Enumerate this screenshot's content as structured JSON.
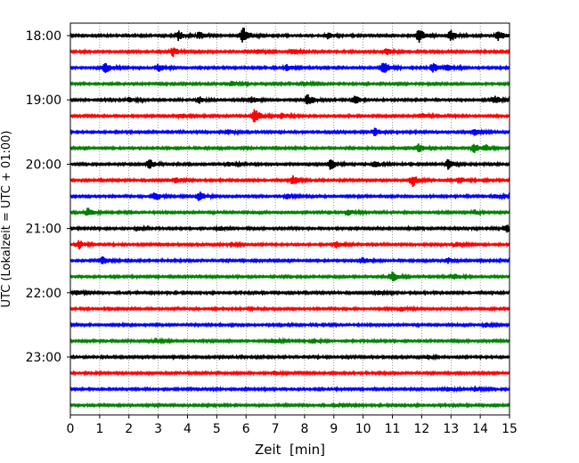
{
  "chart_data": {
    "type": "line",
    "title": "",
    "xlabel": "Zeit  [min]",
    "ylabel": "UTC (Lokalzeit = UTC + 01:00)",
    "xlim": [
      0,
      15
    ],
    "x_ticks": [
      0,
      1,
      2,
      3,
      4,
      5,
      6,
      7,
      8,
      9,
      10,
      11,
      12,
      13,
      14,
      15
    ],
    "y_tick_labels": [
      "18:00",
      "19:00",
      "20:00",
      "21:00",
      "22:00",
      "23:00"
    ],
    "grid": "vertical-dotted",
    "line_colors": [
      "#000000",
      "#ff0000",
      "#0000ff",
      "#008000"
    ],
    "traces": [
      {
        "start": "18:00",
        "events": [
          [
            3.7,
            0.6
          ],
          [
            4.4,
            0.5
          ],
          [
            5.9,
            1.0
          ],
          [
            8.8,
            0.4
          ],
          [
            11.9,
            0.9
          ],
          [
            13.0,
            0.7
          ],
          [
            14.6,
            0.7
          ]
        ]
      },
      {
        "start": "18:15",
        "events": [
          [
            3.5,
            0.6
          ],
          [
            6.4,
            0.4
          ],
          [
            7.6,
            0.3
          ],
          [
            10.8,
            0.4
          ]
        ]
      },
      {
        "start": "18:30",
        "events": [
          [
            1.2,
            0.7
          ],
          [
            3.0,
            0.5
          ],
          [
            7.4,
            0.4
          ],
          [
            10.7,
            0.8
          ],
          [
            12.4,
            0.6
          ],
          [
            12.9,
            0.4
          ]
        ]
      },
      {
        "start": "18:45",
        "events": [
          [
            5.5,
            0.3
          ],
          [
            8.0,
            0.3
          ]
        ]
      },
      {
        "start": "19:00",
        "events": [
          [
            2.0,
            0.3
          ],
          [
            4.4,
            0.4
          ],
          [
            6.2,
            0.4
          ],
          [
            8.1,
            0.7
          ],
          [
            9.7,
            0.6
          ],
          [
            14.5,
            0.5
          ]
        ]
      },
      {
        "start": "19:15",
        "events": [
          [
            3.8,
            0.3
          ],
          [
            6.3,
            0.9
          ],
          [
            7.2,
            0.4
          ],
          [
            12.0,
            0.3
          ]
        ]
      },
      {
        "start": "19:30",
        "events": [
          [
            5.4,
            0.3
          ],
          [
            10.4,
            0.5
          ],
          [
            13.8,
            0.4
          ]
        ]
      },
      {
        "start": "19:45",
        "events": [
          [
            11.9,
            0.5
          ],
          [
            13.8,
            0.6
          ],
          [
            14.2,
            0.3
          ]
        ]
      },
      {
        "start": "20:00",
        "events": [
          [
            2.7,
            0.6
          ],
          [
            5.4,
            0.3
          ],
          [
            8.9,
            0.7
          ],
          [
            10.4,
            0.4
          ],
          [
            12.9,
            0.6
          ]
        ]
      },
      {
        "start": "20:15",
        "events": [
          [
            3.6,
            0.4
          ],
          [
            7.6,
            0.6
          ],
          [
            11.7,
            0.7
          ],
          [
            13.3,
            0.4
          ]
        ]
      },
      {
        "start": "20:30",
        "events": [
          [
            2.9,
            0.6
          ],
          [
            4.4,
            0.6
          ],
          [
            7.4,
            0.3
          ],
          [
            14.5,
            0.3
          ]
        ]
      },
      {
        "start": "20:45",
        "events": [
          [
            0.6,
            0.5
          ],
          [
            9.5,
            0.4
          ],
          [
            13.8,
            0.3
          ]
        ]
      },
      {
        "start": "21:00",
        "events": [
          [
            2.3,
            0.3
          ],
          [
            5.1,
            0.3
          ],
          [
            14.9,
            0.5
          ]
        ]
      },
      {
        "start": "21:15",
        "events": [
          [
            0.3,
            0.5
          ],
          [
            5.5,
            0.3
          ],
          [
            9.1,
            0.4
          ],
          [
            13.2,
            0.3
          ]
        ]
      },
      {
        "start": "21:30",
        "events": [
          [
            1.1,
            0.5
          ],
          [
            10.0,
            0.4
          ],
          [
            12.9,
            0.3
          ]
        ]
      },
      {
        "start": "21:45",
        "events": [
          [
            11.0,
            0.6
          ],
          [
            13.1,
            0.4
          ]
        ]
      },
      {
        "start": "22:00",
        "events": [
          [
            0.2,
            0.3
          ],
          [
            10.5,
            0.3
          ]
        ]
      },
      {
        "start": "22:15",
        "events": [
          [
            11.3,
            0.3
          ]
        ]
      },
      {
        "start": "22:30",
        "events": [
          [
            14.2,
            0.3
          ]
        ]
      },
      {
        "start": "22:45",
        "events": [
          [
            2.9,
            0.3
          ],
          [
            6.9,
            0.3
          ],
          [
            8.3,
            0.3
          ]
        ]
      },
      {
        "start": "23:00",
        "events": [
          [
            12.2,
            0.2
          ]
        ]
      },
      {
        "start": "23:15",
        "events": [
          [
            7.0,
            0.3
          ]
        ]
      },
      {
        "start": "23:30",
        "events": [
          [
            12.9,
            0.3
          ],
          [
            13.8,
            0.3
          ]
        ]
      },
      {
        "start": "23:45",
        "events": [
          [
            9.1,
            0.2
          ]
        ]
      }
    ]
  }
}
